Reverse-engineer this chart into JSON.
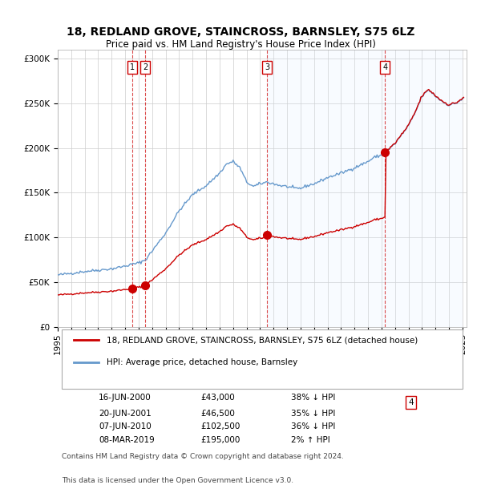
{
  "title": "18, REDLAND GROVE, STAINCROSS, BARNSLEY, S75 6LZ",
  "subtitle": "Price paid vs. HM Land Registry's House Price Index (HPI)",
  "sales": [
    {
      "date": "2000-06-16",
      "price": 43000,
      "label": "1",
      "rel": "38% ↓ HPI"
    },
    {
      "date": "2001-06-20",
      "price": 46500,
      "label": "2",
      "rel": "35% ↓ HPI"
    },
    {
      "date": "2010-06-07",
      "price": 102500,
      "label": "3",
      "rel": "36% ↓ HPI"
    },
    {
      "date": "2019-03-08",
      "price": 195000,
      "label": "4",
      "rel": "2% ↑ HPI"
    }
  ],
  "legend_property": "18, REDLAND GROVE, STAINCROSS, BARNSLEY, S75 6LZ (detached house)",
  "legend_hpi": "HPI: Average price, detached house, Barnsley",
  "footnote1": "Contains HM Land Registry data © Crown copyright and database right 2024.",
  "footnote2": "This data is licensed under the Open Government Licence v3.0.",
  "line_color_property": "#cc0000",
  "line_color_hpi": "#6699cc",
  "dot_color": "#cc0000",
  "dashed_color": "#cc0000",
  "shade_color": "#ddeeff",
  "ylim": [
    0,
    310000
  ],
  "yticks": [
    0,
    50000,
    100000,
    150000,
    200000,
    250000,
    300000
  ],
  "xlabel_start_year": 1995,
  "xlabel_end_year": 2025
}
